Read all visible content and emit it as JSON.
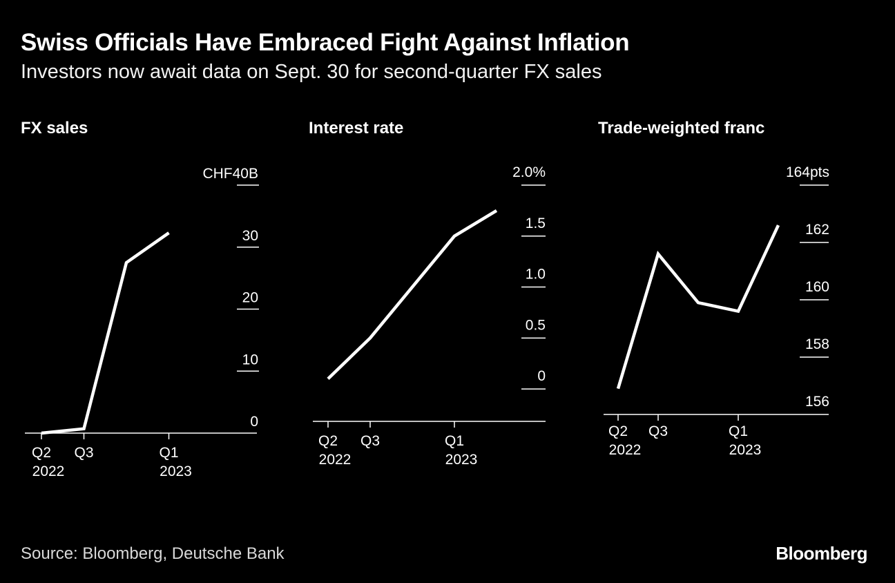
{
  "header": {
    "title": "Swiss Officials Have Embraced Fight Against Inflation",
    "subtitle": "Investors now await data on Sept. 30 for second-quarter FX sales"
  },
  "footer": {
    "source": "Source: Bloomberg, Deutsche Bank",
    "brand": "Bloomberg"
  },
  "colors": {
    "background": "#000000",
    "line": "#ffffff",
    "text": "#ffffff"
  },
  "chart_data": [
    {
      "type": "line",
      "title": "FX sales",
      "x": [
        "Q2 2022",
        "Q3 2022",
        "Q4 2022",
        "Q1 2023"
      ],
      "series": [
        {
          "name": "FX sales",
          "values": [
            0,
            0.7,
            27.5,
            32.3
          ]
        }
      ],
      "ylim": [
        0,
        40
      ],
      "yticks": [
        {
          "value": 40,
          "label": "CHF40B"
        },
        {
          "value": 30,
          "label": "30"
        },
        {
          "value": 20,
          "label": "20"
        },
        {
          "value": 10,
          "label": "10"
        },
        {
          "value": 0,
          "label": "0"
        }
      ],
      "xticks": [
        {
          "index": 0,
          "label": "Q2",
          "label2": "2022"
        },
        {
          "index": 1,
          "label": "Q3",
          "label2": ""
        },
        {
          "index": 3,
          "label": "Q1",
          "label2": "2023"
        }
      ]
    },
    {
      "type": "line",
      "title": "Interest rate",
      "x": [
        "Q2 2022",
        "Q3 2022",
        "Q4 2022",
        "Q1 2023",
        "Q2 2023"
      ],
      "series": [
        {
          "name": "Interest rate",
          "values": [
            0.1,
            0.5,
            1.0,
            1.5,
            1.75
          ]
        }
      ],
      "ylim": [
        -0.25,
        2.0
      ],
      "yticks": [
        {
          "value": 2.0,
          "label": "2.0%"
        },
        {
          "value": 1.5,
          "label": "1.5"
        },
        {
          "value": 1.0,
          "label": "1.0"
        },
        {
          "value": 0.5,
          "label": "0.5"
        },
        {
          "value": 0,
          "label": "0"
        }
      ],
      "xticks": [
        {
          "index": 0,
          "label": "Q2",
          "label2": "2022"
        },
        {
          "index": 1,
          "label": "Q3",
          "label2": ""
        },
        {
          "index": 3,
          "label": "Q1",
          "label2": "2023"
        }
      ]
    },
    {
      "type": "line",
      "title": "Trade-weighted franc",
      "x": [
        "Q2 2022",
        "Q3 2022",
        "Q4 2022",
        "Q1 2023",
        "Q2 2023"
      ],
      "series": [
        {
          "name": "Trade-weighted franc",
          "values": [
            156.9,
            161.6,
            159.9,
            159.6,
            162.6
          ]
        }
      ],
      "ylim": [
        156,
        164
      ],
      "yticks": [
        {
          "value": 164,
          "label": "164pts"
        },
        {
          "value": 162,
          "label": "162"
        },
        {
          "value": 160,
          "label": "160"
        },
        {
          "value": 158,
          "label": "158"
        },
        {
          "value": 156,
          "label": "156"
        }
      ],
      "xticks": [
        {
          "index": 0,
          "label": "Q2",
          "label2": "2022"
        },
        {
          "index": 1,
          "label": "Q3",
          "label2": ""
        },
        {
          "index": 3,
          "label": "Q1",
          "label2": "2023"
        }
      ]
    }
  ]
}
